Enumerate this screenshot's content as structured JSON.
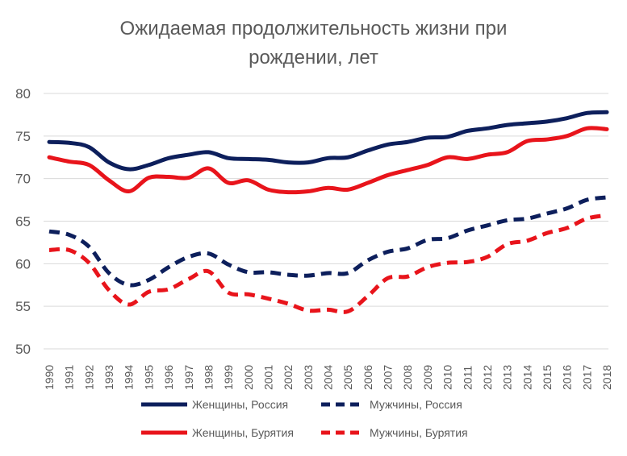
{
  "chart_data": {
    "type": "line",
    "title_lines": [
      "Ожидаемая продолжительность жизни при",
      "рождении, лет"
    ],
    "ylim": [
      50,
      80
    ],
    "yticks": [
      50,
      55,
      60,
      65,
      70,
      75,
      80
    ],
    "grid": "horizontal",
    "legend_position": "bottom",
    "x": [
      "1990",
      "1991",
      "1992",
      "1993",
      "1994",
      "1995",
      "1996",
      "1997",
      "1998",
      "1999",
      "2000",
      "2001",
      "2002",
      "2003",
      "2004",
      "2005",
      "2006",
      "2007",
      "2008",
      "2009",
      "2010",
      "2011",
      "2012",
      "2013",
      "2014",
      "2015",
      "2016",
      "2017",
      "2018"
    ],
    "series": [
      {
        "name": "Женщины, Россия",
        "color": "#0d1f5c",
        "dashed": false,
        "values": [
          74.3,
          74.2,
          73.7,
          71.9,
          71.1,
          71.6,
          72.4,
          72.8,
          73.1,
          72.4,
          72.3,
          72.2,
          71.9,
          71.9,
          72.4,
          72.5,
          73.3,
          74.0,
          74.3,
          74.8,
          74.9,
          75.6,
          75.9,
          76.3,
          76.5,
          76.7,
          77.1,
          77.7,
          77.8
        ]
      },
      {
        "name": "Мужчины, Россия",
        "color": "#0d1f5c",
        "dashed": true,
        "values": [
          63.8,
          63.4,
          62.0,
          58.9,
          57.5,
          58.1,
          59.6,
          60.8,
          61.2,
          59.9,
          59.0,
          59.0,
          58.7,
          58.6,
          58.9,
          58.9,
          60.4,
          61.4,
          61.8,
          62.8,
          63.0,
          63.9,
          64.5,
          65.1,
          65.3,
          65.9,
          66.5,
          67.5,
          67.8
        ]
      },
      {
        "name": "Женщины, Бурятия",
        "color": "#e8141b",
        "dashed": false,
        "values": [
          72.5,
          72.0,
          71.6,
          69.8,
          68.5,
          70.1,
          70.2,
          70.1,
          71.2,
          69.5,
          69.8,
          68.7,
          68.4,
          68.5,
          68.9,
          68.7,
          69.5,
          70.4,
          71.0,
          71.6,
          72.5,
          72.3,
          72.8,
          73.1,
          74.4,
          74.6,
          75.0,
          75.9,
          75.8
        ]
      },
      {
        "name": "Мужчины, Бурятия",
        "color": "#e8141b",
        "dashed": true,
        "values": [
          61.6,
          61.6,
          60.1,
          56.9,
          55.2,
          56.7,
          57.0,
          58.2,
          59.1,
          56.6,
          56.4,
          55.9,
          55.3,
          54.5,
          54.6,
          54.4,
          56.2,
          58.3,
          58.5,
          59.6,
          60.1,
          60.2,
          60.8,
          62.3,
          62.7,
          63.6,
          64.2,
          65.3,
          65.7
        ]
      }
    ]
  }
}
